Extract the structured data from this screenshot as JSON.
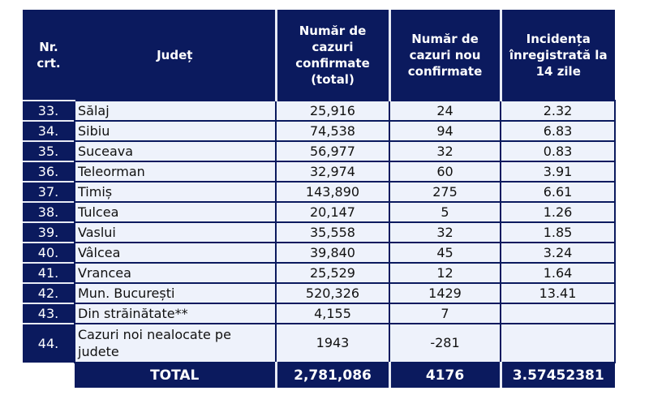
{
  "headers": {
    "nr": "Nr. crt.",
    "judet": "Județ",
    "total": "Număr de cazuri confirmate (total)",
    "noi": "Număr de cazuri nou confirmate",
    "incidenta": "Incidența înregistrată la 14 zile"
  },
  "rows": [
    {
      "nr": "33.",
      "judet": "Sălaj",
      "total": "25,916",
      "noi": "24",
      "incidenta": "2.32"
    },
    {
      "nr": "34.",
      "judet": "Sibiu",
      "total": "74,538",
      "noi": "94",
      "incidenta": "6.83"
    },
    {
      "nr": "35.",
      "judet": "Suceava",
      "total": "56,977",
      "noi": "32",
      "incidenta": "0.83"
    },
    {
      "nr": "36.",
      "judet": "Teleorman",
      "total": "32,974",
      "noi": "60",
      "incidenta": "3.91"
    },
    {
      "nr": "37.",
      "judet": "Timiș",
      "total": "143,890",
      "noi": "275",
      "incidenta": "6.61"
    },
    {
      "nr": "38.",
      "judet": "Tulcea",
      "total": "20,147",
      "noi": "5",
      "incidenta": "1.26"
    },
    {
      "nr": "39.",
      "judet": "Vaslui",
      "total": "35,558",
      "noi": "32",
      "incidenta": "1.85"
    },
    {
      "nr": "40.",
      "judet": "Vâlcea",
      "total": "39,840",
      "noi": "45",
      "incidenta": "3.24"
    },
    {
      "nr": "41.",
      "judet": "Vrancea",
      "total": "25,529",
      "noi": "12",
      "incidenta": "1.64"
    },
    {
      "nr": "42.",
      "judet": "Mun. București",
      "total": "520,326",
      "noi": "1429",
      "incidenta": "13.41"
    },
    {
      "nr": "43.",
      "judet": "Din străinătate**",
      "total": "4,155",
      "noi": "7",
      "incidenta": ""
    },
    {
      "nr": "44.",
      "judet": "Cazuri noi nealocate pe judete",
      "total": "1943",
      "noi": "-281",
      "incidenta": ""
    }
  ],
  "total": {
    "label": "TOTAL",
    "total": "2,781,086",
    "noi": "4176",
    "incidenta": "3.57452381"
  }
}
